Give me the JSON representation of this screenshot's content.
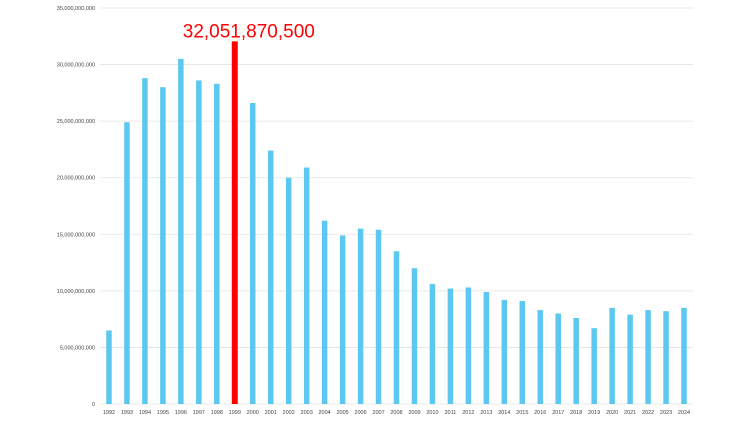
{
  "chart_data": {
    "type": "bar",
    "title": "",
    "xlabel": "",
    "ylabel": "",
    "ylim": [
      0,
      35000000000
    ],
    "yticks": [
      {
        "value": 0,
        "label": "0"
      },
      {
        "value": 5000000000,
        "label": "5,000,000,000"
      },
      {
        "value": 10000000000,
        "label": "10,000,000,000"
      },
      {
        "value": 15000000000,
        "label": "15,000,000,000"
      },
      {
        "value": 20000000000,
        "label": "20,000,000,000"
      },
      {
        "value": 25000000000,
        "label": "25,000,000,000"
      },
      {
        "value": 30000000000,
        "label": "30,000,000,000"
      },
      {
        "value": 35000000000,
        "label": "35,000,000,000"
      }
    ],
    "grid": true,
    "legend": "none",
    "categories": [
      "1992",
      "1993",
      "1994",
      "1995",
      "1996",
      "1997",
      "1998",
      "1999",
      "2000",
      "2001",
      "2002",
      "2003",
      "2004",
      "2005",
      "2006",
      "2007",
      "2008",
      "2009",
      "2010",
      "2011",
      "2012",
      "2013",
      "2014",
      "2015",
      "2016",
      "2017",
      "2018",
      "2019",
      "2020",
      "2021",
      "2022",
      "2023",
      "2024"
    ],
    "values": [
      6500000000,
      24900000000,
      28800000000,
      28000000000,
      30500000000,
      28600000000,
      28300000000,
      32051870500,
      26600000000,
      22400000000,
      20000000000,
      20900000000,
      16200000000,
      14900000000,
      15500000000,
      15400000000,
      13500000000,
      12000000000,
      10600000000,
      10200000000,
      10300000000,
      9900000000,
      9200000000,
      9100000000,
      8300000000,
      8000000000,
      7600000000,
      6700000000,
      8500000000,
      7900000000,
      8300000000,
      8200000000,
      8500000000
    ],
    "colors": {
      "bar": "#5bc8f0",
      "highlight": "#ff0000"
    },
    "highlight": {
      "category": "1999",
      "label": "32,051,870,500"
    }
  }
}
